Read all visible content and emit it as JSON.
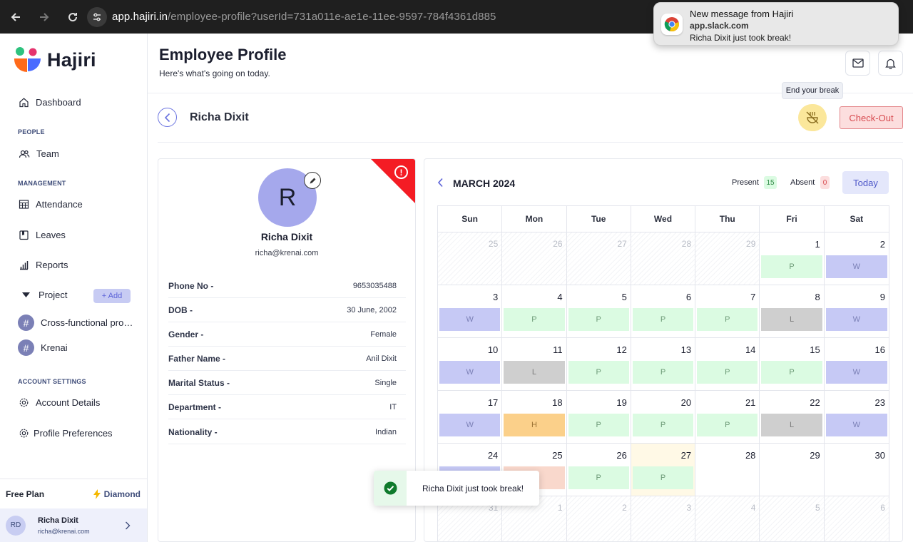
{
  "browser": {
    "url_domain": "app.hajiri.in",
    "url_path": "/employee-profile?userId=731a011e-ae1e-11ee-9597-784f4361d885"
  },
  "notification": {
    "title": "New message from Hajiri",
    "source": "app.slack.com",
    "body": "Richa Dixit just took break!"
  },
  "brand": {
    "name": "Hajiri"
  },
  "sidebar": {
    "dashboard": "Dashboard",
    "people_section": "PEOPLE",
    "team": "Team",
    "management_section": "MANAGEMENT",
    "attendance": "Attendance",
    "leaves": "Leaves",
    "reports": "Reports",
    "project": "Project",
    "add_label": "+ Add",
    "projects": [
      "Cross-functional pro…",
      "Krenai"
    ],
    "account_section": "ACCOUNT SETTINGS",
    "account_details": "Account Details",
    "profile_preferences": "Profile Preferences",
    "plan": "Free Plan",
    "plan_tier": "Diamond",
    "user_initials": "RD",
    "user_name": "Richa Dixit",
    "user_email": "richa@krenai.com"
  },
  "header": {
    "title": "Employee Profile",
    "subtitle": "Here's what's going on today."
  },
  "employee_bar": {
    "name": "Richa Dixit",
    "tooltip": "End your break",
    "checkout": "Check-Out"
  },
  "profile": {
    "initial": "R",
    "name": "Richa Dixit",
    "email": "richa@krenai.com",
    "fields": [
      {
        "label": "Phone No -",
        "value": "9653035488"
      },
      {
        "label": "DOB -",
        "value": "30 June, 2002"
      },
      {
        "label": "Gender -",
        "value": "Female"
      },
      {
        "label": "Father Name -",
        "value": "Anil Dixit"
      },
      {
        "label": "Marital Status -",
        "value": "Single"
      },
      {
        "label": "Department -",
        "value": "IT"
      },
      {
        "label": "Nationality -",
        "value": "Indian"
      }
    ]
  },
  "calendar": {
    "month": "MARCH 2024",
    "present_label": "Present",
    "present_count": "15",
    "absent_label": "Absent",
    "absent_count": "0",
    "today_label": "Today",
    "days": [
      "Sun",
      "Mon",
      "Tue",
      "Wed",
      "Thu",
      "Fri",
      "Sat"
    ],
    "weeks": [
      [
        {
          "d": "25",
          "out": true
        },
        {
          "d": "26",
          "out": true
        },
        {
          "d": "27",
          "out": true
        },
        {
          "d": "28",
          "out": true
        },
        {
          "d": "29",
          "out": true
        },
        {
          "d": "1",
          "s": "P"
        },
        {
          "d": "2",
          "s": "W"
        }
      ],
      [
        {
          "d": "3",
          "s": "W"
        },
        {
          "d": "4",
          "s": "P"
        },
        {
          "d": "5",
          "s": "P"
        },
        {
          "d": "6",
          "s": "P"
        },
        {
          "d": "7",
          "s": "P"
        },
        {
          "d": "8",
          "s": "L"
        },
        {
          "d": "9",
          "s": "W"
        }
      ],
      [
        {
          "d": "10",
          "s": "W"
        },
        {
          "d": "11",
          "s": "L"
        },
        {
          "d": "12",
          "s": "P"
        },
        {
          "d": "13",
          "s": "P"
        },
        {
          "d": "14",
          "s": "P"
        },
        {
          "d": "15",
          "s": "P"
        },
        {
          "d": "16",
          "s": "W"
        }
      ],
      [
        {
          "d": "17",
          "s": "W"
        },
        {
          "d": "18",
          "s": "H"
        },
        {
          "d": "19",
          "s": "P"
        },
        {
          "d": "20",
          "s": "P"
        },
        {
          "d": "21",
          "s": "P"
        },
        {
          "d": "22",
          "s": "L"
        },
        {
          "d": "23",
          "s": "W"
        }
      ],
      [
        {
          "d": "24",
          "s": "W"
        },
        {
          "d": "25",
          "s": "X"
        },
        {
          "d": "26",
          "s": "P"
        },
        {
          "d": "27",
          "s": "P",
          "today": true
        },
        {
          "d": "28"
        },
        {
          "d": "29"
        },
        {
          "d": "30"
        }
      ],
      [
        {
          "d": "31",
          "out": true
        },
        {
          "d": "1",
          "out": true
        },
        {
          "d": "2",
          "out": true
        },
        {
          "d": "3",
          "out": true
        },
        {
          "d": "4",
          "out": true
        },
        {
          "d": "5",
          "out": true
        },
        {
          "d": "6",
          "out": true
        }
      ]
    ]
  },
  "toast": {
    "message": "Richa Dixit just took break!"
  },
  "colors": {
    "accent": "#5c63d8",
    "checkout": "#d74a4f",
    "alert": "#f41c24"
  }
}
